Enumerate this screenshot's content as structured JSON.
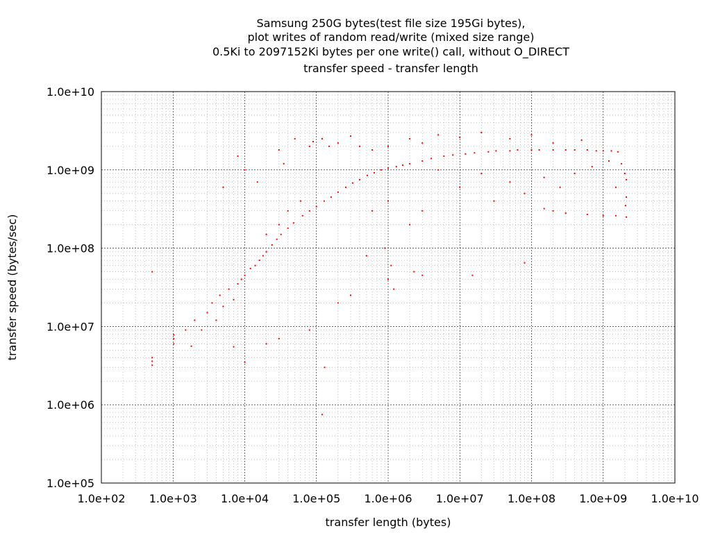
{
  "chart_data": {
    "type": "scatter",
    "title_lines": [
      "Samsung 250G bytes(test file size 195Gi bytes),",
      "plot writes of random read/write (mixed size range)",
      "0.5Ki to 2097152Ki bytes per one write() call, without O_DIRECT",
      "transfer speed - transfer length"
    ],
    "xlabel": "transfer length (bytes)",
    "ylabel": "transfer speed (bytes/sec)",
    "x_scale": "log",
    "y_scale": "log",
    "xlim": [
      100,
      10000000000
    ],
    "ylim": [
      100000,
      10000000000
    ],
    "x_ticks": [
      100,
      1000,
      10000,
      100000,
      1000000,
      10000000,
      100000000,
      1000000000,
      10000000000
    ],
    "x_tick_labels": [
      "1.0e+02",
      "1.0e+03",
      "1.0e+04",
      "1.0e+05",
      "1.0e+06",
      "1.0e+07",
      "1.0e+08",
      "1.0e+09",
      "1.0e+10"
    ],
    "y_ticks": [
      100000,
      1000000,
      10000000,
      100000000,
      1000000000,
      10000000000
    ],
    "y_tick_labels": [
      "1.0e+05",
      "1.0e+06",
      "1.0e+07",
      "1.0e+08",
      "1.0e+09",
      "1.0e+10"
    ],
    "grid": true,
    "minor_grid": true,
    "point_color": "#ff0000",
    "series": [
      {
        "points": [
          [
            512,
            3200000
          ],
          [
            512,
            3600000
          ],
          [
            512,
            4000000
          ],
          [
            512,
            50000000
          ],
          [
            1024,
            6000000
          ],
          [
            1024,
            7000000
          ],
          [
            1024,
            7800000
          ],
          [
            1500,
            9000000
          ],
          [
            1800,
            5600000
          ],
          [
            2000,
            12000000
          ],
          [
            2500,
            9000000
          ],
          [
            3000,
            15000000
          ],
          [
            3500,
            20000000
          ],
          [
            4000,
            12000000
          ],
          [
            4500,
            25000000
          ],
          [
            5000,
            18000000
          ],
          [
            6000,
            30000000
          ],
          [
            7000,
            22000000
          ],
          [
            8000,
            35000000
          ],
          [
            9000,
            40000000
          ],
          [
            10000,
            45000000
          ],
          [
            12000,
            55000000
          ],
          [
            14000,
            60000000
          ],
          [
            16000,
            70000000
          ],
          [
            18000,
            80000000
          ],
          [
            20000,
            90000000
          ],
          [
            24000,
            110000000
          ],
          [
            28000,
            130000000
          ],
          [
            32000,
            150000000
          ],
          [
            40000,
            180000000
          ],
          [
            48000,
            210000000
          ],
          [
            64000,
            260000000
          ],
          [
            80000,
            300000000
          ],
          [
            100000,
            340000000
          ],
          [
            128000,
            400000000
          ],
          [
            160000,
            450000000
          ],
          [
            200000,
            520000000
          ],
          [
            256000,
            600000000
          ],
          [
            320000,
            680000000
          ],
          [
            400000,
            750000000
          ],
          [
            512000,
            850000000
          ],
          [
            640000,
            920000000
          ],
          [
            800000,
            1000000000
          ],
          [
            1000000,
            1050000000
          ],
          [
            1300000,
            1100000000
          ],
          [
            1600000,
            1150000000
          ],
          [
            2000000,
            1200000000
          ],
          [
            3000000,
            1300000000
          ],
          [
            4000000,
            1400000000
          ],
          [
            6000000,
            1500000000
          ],
          [
            8000000,
            1550000000
          ],
          [
            12000000,
            1600000000
          ],
          [
            16000000,
            1650000000
          ],
          [
            25000000,
            1700000000
          ],
          [
            32000000,
            1750000000
          ],
          [
            50000000,
            1750000000
          ],
          [
            64000000,
            1800000000
          ],
          [
            100000000,
            1800000000
          ],
          [
            128000000,
            1800000000
          ],
          [
            200000000,
            1800000000
          ],
          [
            300000000,
            1800000000
          ],
          [
            400000000,
            1800000000
          ],
          [
            600000000,
            1800000000
          ],
          [
            800000000,
            1750000000
          ],
          [
            1000000000,
            1750000000
          ],
          [
            1300000000,
            1750000000
          ],
          [
            1600000000,
            1700000000
          ],
          [
            1800000000,
            1200000000
          ],
          [
            2000000000,
            900000000
          ],
          [
            2100000000,
            750000000
          ],
          [
            2100000000,
            450000000
          ],
          [
            2050000000,
            350000000
          ],
          [
            2100000000,
            250000000
          ],
          [
            1500000000,
            260000000
          ],
          [
            1000000000,
            260000000
          ],
          [
            600000000,
            270000000
          ],
          [
            300000000,
            280000000
          ],
          [
            200000000,
            300000000
          ],
          [
            150000000,
            320000000
          ],
          [
            20000,
            150000000
          ],
          [
            30000,
            200000000
          ],
          [
            40000,
            300000000
          ],
          [
            60000,
            400000000
          ],
          [
            80000,
            2000000000
          ],
          [
            90000,
            2300000000
          ],
          [
            120000,
            2500000000
          ],
          [
            150000,
            2000000000
          ],
          [
            200000,
            2200000000
          ],
          [
            300000,
            2700000000
          ],
          [
            400000,
            2000000000
          ],
          [
            600000,
            1800000000
          ],
          [
            1000000,
            2000000000
          ],
          [
            2000000,
            2500000000
          ],
          [
            3000000,
            2200000000
          ],
          [
            5000000,
            2800000000
          ],
          [
            10000000,
            2600000000
          ],
          [
            20000000,
            3000000000
          ],
          [
            50000000,
            2500000000
          ],
          [
            100000000,
            2800000000
          ],
          [
            200000000,
            2200000000
          ],
          [
            500000000,
            2400000000
          ],
          [
            5000000,
            1000000000
          ],
          [
            10000000,
            600000000
          ],
          [
            20000000,
            900000000
          ],
          [
            30000000,
            400000000
          ],
          [
            50000000,
            700000000
          ],
          [
            80000000,
            500000000
          ],
          [
            150000000,
            800000000
          ],
          [
            250000000,
            600000000
          ],
          [
            400000000,
            900000000
          ],
          [
            700000000,
            1100000000
          ],
          [
            1200000000,
            1300000000
          ],
          [
            1500000000,
            600000000
          ],
          [
            600000,
            300000000
          ],
          [
            1000000,
            400000000
          ],
          [
            2000000,
            200000000
          ],
          [
            3000000,
            300000000
          ],
          [
            1100000,
            60000000
          ],
          [
            1200000,
            30000000
          ],
          [
            1000000,
            40000000
          ],
          [
            2300000,
            50000000
          ],
          [
            3000000,
            45000000
          ],
          [
            15000000,
            45000000
          ],
          [
            80000000,
            65000000
          ],
          [
            7000,
            5500000
          ],
          [
            20000,
            6000000
          ],
          [
            30000,
            7000000
          ],
          [
            10000,
            3500000
          ],
          [
            80000,
            9000000
          ],
          [
            130000,
            3000000
          ],
          [
            200000,
            20000000
          ],
          [
            300000,
            25000000
          ],
          [
            500000,
            80000000
          ],
          [
            900000,
            100000000
          ],
          [
            120000,
            750000
          ],
          [
            10000,
            1000000000
          ],
          [
            15000,
            700000000
          ],
          [
            5000,
            600000000
          ],
          [
            8000,
            1500000000
          ],
          [
            30000,
            1800000000
          ],
          [
            50000,
            2500000000
          ],
          [
            35000,
            1200000000
          ]
        ]
      }
    ]
  }
}
